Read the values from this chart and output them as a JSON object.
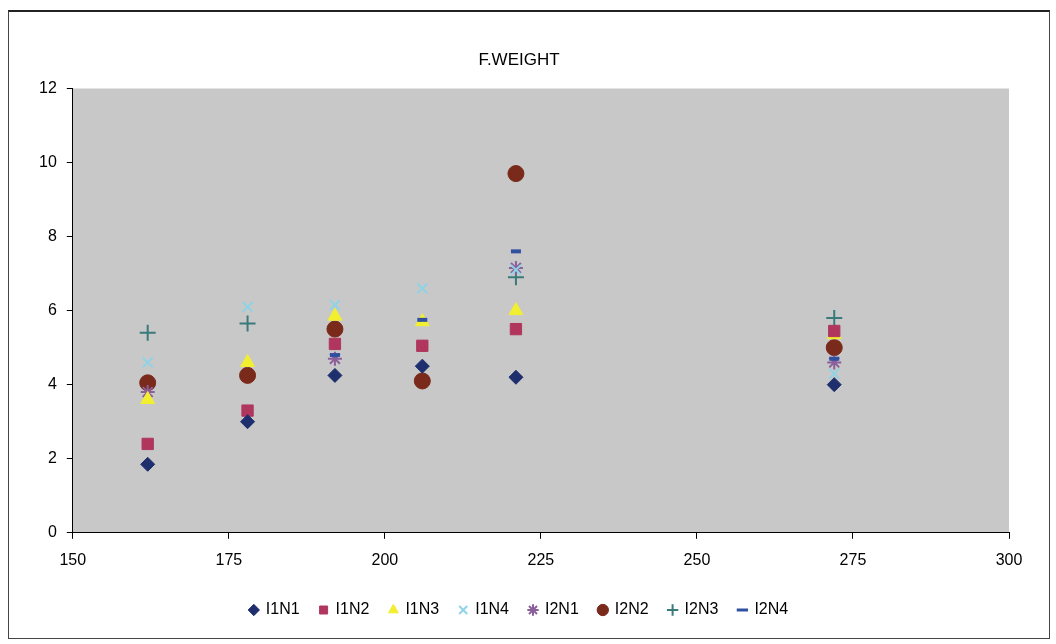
{
  "chart_data": {
    "type": "scatter",
    "title": "F.WEIGHT",
    "x": [
      162,
      178,
      192,
      206,
      221,
      272
    ],
    "xlim": [
      150,
      300
    ],
    "xticks": [
      150,
      175,
      200,
      225,
      250,
      275,
      300
    ],
    "ylim": [
      0,
      12
    ],
    "yticks": [
      0,
      2,
      4,
      6,
      8,
      10,
      12
    ],
    "grid": false,
    "legend": "bottom",
    "series": [
      {
        "name": "I1N1",
        "color": "#1f2f6e",
        "marker": "diamond",
        "values": [
          1.85,
          3.0,
          4.25,
          4.5,
          4.2,
          4.0
        ]
      },
      {
        "name": "I1N2",
        "color": "#b0365e",
        "marker": "square",
        "values": [
          2.4,
          3.3,
          5.1,
          5.05,
          5.5,
          5.45
        ]
      },
      {
        "name": "I1N3",
        "color": "#f2ee30",
        "marker": "triangle",
        "values": [
          3.6,
          4.6,
          5.85,
          5.7,
          6.0,
          5.35
        ]
      },
      {
        "name": "I1N4",
        "color": "#8fd3e6",
        "marker": "cross",
        "values": [
          4.6,
          6.1,
          6.15,
          6.6,
          7.1,
          4.3
        ]
      },
      {
        "name": "I2N1",
        "color": "#8b5f9a",
        "marker": "cross",
        "values": [
          3.8,
          null,
          4.7,
          null,
          7.15,
          4.6
        ]
      },
      {
        "name": "I2N2",
        "color": "#7a2a1a",
        "marker": "circle",
        "values": [
          4.05,
          4.25,
          5.5,
          4.1,
          9.7,
          5.0
        ]
      },
      {
        "name": "I2N3",
        "color": "#3a7a7a",
        "marker": "plus",
        "values": [
          5.4,
          5.65,
          null,
          null,
          6.9,
          5.8
        ]
      },
      {
        "name": "I2N4",
        "color": "#3050a0",
        "values": [
          null,
          null,
          4.8,
          5.75,
          7.6,
          4.7
        ]
      }
    ]
  }
}
